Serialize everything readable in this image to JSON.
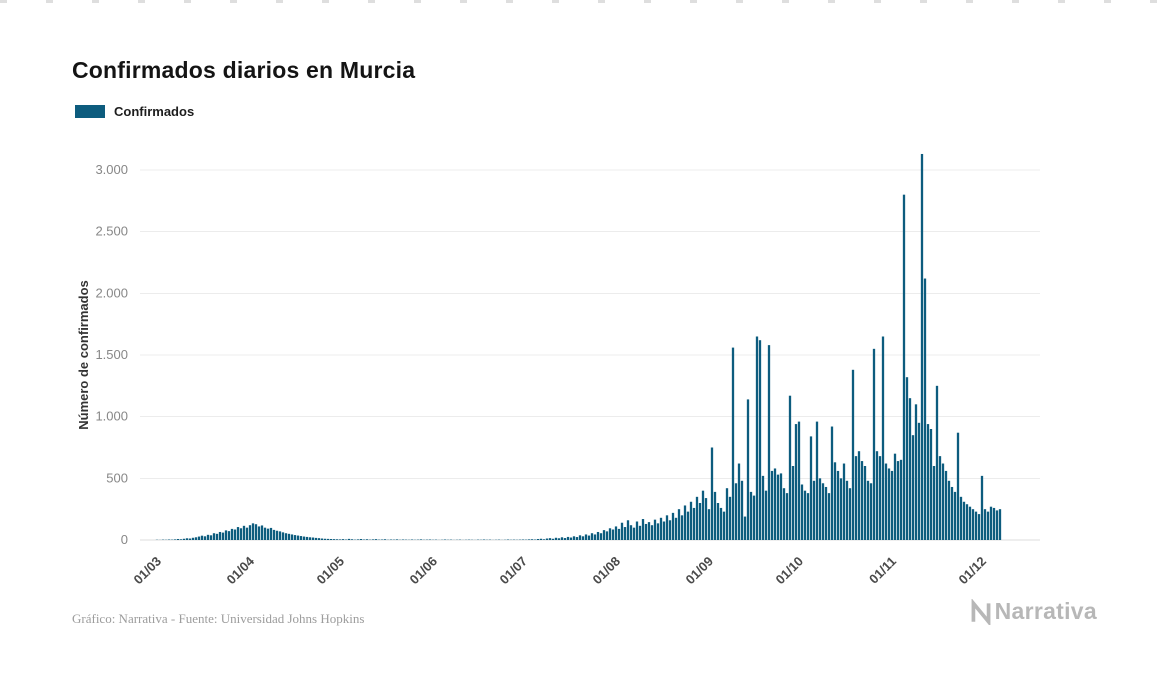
{
  "legend": {
    "color": "#0d5c7e"
  },
  "footer": {
    "credit": "Gráfico: Narrativa - Fuente: Universidad Johns Hopkins"
  },
  "logo": {
    "text": "Narrativa"
  },
  "chart_data": {
    "type": "bar",
    "title": "Confirmados diarios en Murcia",
    "series_name": "Confirmados",
    "color": "#0d5c7e",
    "xlabel": "",
    "ylabel": "Número de confirmados",
    "ylim": [
      0,
      3000
    ],
    "grid": "horizontal",
    "legend_position": "top-left",
    "ytick_values": [
      0,
      500,
      1000,
      1500,
      2000,
      2500,
      3000
    ],
    "ytick_labels": [
      "0",
      "500",
      "1.000",
      "1.500",
      "2.000",
      "2.500",
      "3.000"
    ],
    "xtick_labels": [
      "01/03",
      "01/04",
      "01/05",
      "01/06",
      "01/07",
      "01/08",
      "01/09",
      "01/10",
      "01/11",
      "01/12"
    ],
    "xtick_day_index": [
      0,
      31,
      61,
      92,
      122,
      153,
      184,
      214,
      245,
      275
    ],
    "x_unit": "day",
    "x_start_label": "01/03",
    "values": [
      2,
      1,
      3,
      2,
      4,
      3,
      5,
      8,
      6,
      10,
      14,
      12,
      18,
      22,
      28,
      35,
      30,
      42,
      38,
      55,
      50,
      65,
      60,
      78,
      72,
      90,
      85,
      105,
      95,
      115,
      100,
      120,
      135,
      128,
      110,
      118,
      100,
      92,
      98,
      82,
      75,
      70,
      62,
      55,
      50,
      45,
      40,
      36,
      32,
      28,
      25,
      22,
      20,
      17,
      15,
      12,
      10,
      9,
      8,
      7,
      6,
      5,
      7,
      4,
      9,
      6,
      3,
      5,
      8,
      4,
      6,
      3,
      5,
      7,
      3,
      4,
      6,
      2,
      4,
      3,
      5,
      2,
      4,
      3,
      2,
      4,
      2,
      3,
      5,
      2,
      3,
      4,
      2,
      3,
      1,
      2,
      4,
      2,
      3,
      1,
      2,
      3,
      1,
      2,
      3,
      2,
      1,
      3,
      2,
      4,
      2,
      3,
      1,
      2,
      3,
      1,
      2,
      4,
      2,
      3,
      2,
      3,
      4,
      3,
      5,
      6,
      4,
      8,
      10,
      6,
      12,
      15,
      10,
      18,
      14,
      22,
      16,
      25,
      20,
      30,
      24,
      38,
      30,
      45,
      36,
      55,
      45,
      65,
      55,
      80,
      70,
      95,
      85,
      110,
      90,
      140,
      105,
      160,
      120,
      100,
      150,
      115,
      170,
      130,
      145,
      120,
      165,
      135,
      180,
      150,
      200,
      160,
      220,
      180,
      250,
      200,
      280,
      230,
      310,
      260,
      350,
      300,
      400,
      340,
      250,
      750,
      390,
      300,
      260,
      230,
      420,
      350,
      1560,
      460,
      620,
      480,
      190,
      1140,
      390,
      360,
      1650,
      1620,
      520,
      400,
      1580,
      560,
      580,
      530,
      540,
      420,
      380,
      1170,
      600,
      940,
      960,
      450,
      400,
      380,
      840,
      480,
      960,
      500,
      460,
      430,
      380,
      920,
      630,
      560,
      500,
      620,
      480,
      420,
      1380,
      680,
      720,
      640,
      600,
      480,
      460,
      1550,
      720,
      680,
      1650,
      620,
      580,
      560,
      700,
      640,
      650,
      2800,
      1320,
      1150,
      850,
      1100,
      950,
      3130,
      2120,
      940,
      900,
      600,
      1250,
      680,
      620,
      560,
      480,
      430,
      390,
      870,
      350,
      310,
      290,
      270,
      250,
      230,
      210,
      520,
      250,
      230,
      270,
      260,
      240,
      250
    ]
  }
}
